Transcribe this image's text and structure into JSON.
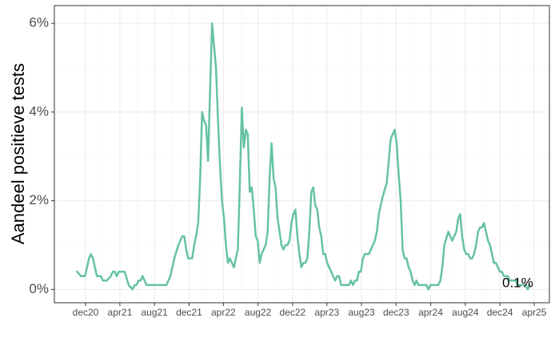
{
  "chart_data": {
    "type": "line",
    "title": "",
    "xlabel": "",
    "ylabel": "Aandeel positieve tests",
    "x_ticks": [
      "dec20",
      "apr21",
      "aug21",
      "dec21",
      "apr22",
      "aug22",
      "dec22",
      "apr23",
      "aug23",
      "dec23",
      "apr24",
      "aug24",
      "dec24",
      "apr25"
    ],
    "y_ticks": [
      "0%",
      "2%",
      "4%",
      "6%"
    ],
    "ylim": [
      0,
      6.4
    ],
    "grid": true,
    "line_color": "#66c2a5",
    "series": [
      {
        "x": [
          "2020-11-01",
          "2020-11-15",
          "2020-11-29",
          "2020-12-13",
          "2020-12-20",
          "2020-12-27",
          "2021-01-03",
          "2021-01-10",
          "2021-01-17",
          "2021-01-24",
          "2021-01-31",
          "2021-02-14",
          "2021-02-28",
          "2021-03-07",
          "2021-03-14",
          "2021-03-21",
          "2021-03-28",
          "2021-04-04",
          "2021-04-11",
          "2021-04-18",
          "2021-05-02",
          "2021-05-16",
          "2021-05-23",
          "2021-05-30",
          "2021-06-06",
          "2021-06-13",
          "2021-06-20",
          "2021-06-27",
          "2021-07-04",
          "2021-07-11",
          "2021-07-18",
          "2021-07-25",
          "2021-08-01",
          "2021-08-08",
          "2021-08-15",
          "2021-08-29",
          "2021-09-12",
          "2021-09-26",
          "2021-10-10",
          "2021-10-24",
          "2021-11-07",
          "2021-11-14",
          "2021-11-21",
          "2021-11-28",
          "2021-12-05",
          "2021-12-12",
          "2021-12-19",
          "2021-12-26",
          "2022-01-02",
          "2022-01-09",
          "2022-01-16",
          "2022-01-23",
          "2022-01-30",
          "2022-02-06",
          "2022-02-13",
          "2022-02-20",
          "2022-02-27",
          "2022-03-06",
          "2022-03-13",
          "2022-03-20",
          "2022-03-27",
          "2022-04-03",
          "2022-04-10",
          "2022-04-17",
          "2022-04-24",
          "2022-05-01",
          "2022-05-08",
          "2022-05-15",
          "2022-05-22",
          "2022-05-29",
          "2022-06-05",
          "2022-06-12",
          "2022-06-19",
          "2022-06-26",
          "2022-07-03",
          "2022-07-10",
          "2022-07-17",
          "2022-07-24",
          "2022-07-31",
          "2022-08-07",
          "2022-08-14",
          "2022-08-21",
          "2022-08-28",
          "2022-09-04",
          "2022-09-11",
          "2022-09-18",
          "2022-09-25",
          "2022-10-02",
          "2022-10-09",
          "2022-10-16",
          "2022-10-23",
          "2022-10-30",
          "2022-11-06",
          "2022-11-13",
          "2022-11-20",
          "2022-11-27",
          "2022-12-04",
          "2022-12-11",
          "2022-12-18",
          "2022-12-25",
          "2023-01-01",
          "2023-01-08",
          "2023-01-15",
          "2023-01-22",
          "2023-01-29",
          "2023-02-05",
          "2023-02-12",
          "2023-02-19",
          "2023-02-26",
          "2023-03-05",
          "2023-03-12",
          "2023-03-19",
          "2023-03-26",
          "2023-04-02",
          "2023-04-09",
          "2023-04-16",
          "2023-04-23",
          "2023-04-30",
          "2023-05-07",
          "2023-05-14",
          "2023-05-21",
          "2023-05-28",
          "2023-06-04",
          "2023-06-11",
          "2023-06-18",
          "2023-06-25",
          "2023-07-02",
          "2023-07-09",
          "2023-07-16",
          "2023-07-23",
          "2023-07-30",
          "2023-08-06",
          "2023-08-13",
          "2023-08-20",
          "2023-08-27",
          "2023-09-03",
          "2023-09-10",
          "2023-09-17",
          "2023-09-24",
          "2023-10-01",
          "2023-10-15",
          "2023-10-29",
          "2023-11-12",
          "2023-11-26",
          "2023-12-03",
          "2023-12-10",
          "2023-12-17",
          "2023-12-24",
          "2023-12-31",
          "2024-01-07",
          "2024-01-14",
          "2024-01-21",
          "2024-01-28",
          "2024-02-04",
          "2024-02-11",
          "2024-02-18",
          "2024-02-25",
          "2024-03-03",
          "2024-03-10",
          "2024-03-17",
          "2024-03-24",
          "2024-03-31",
          "2024-04-14",
          "2024-04-28",
          "2024-05-05",
          "2024-05-12",
          "2024-05-19",
          "2024-06-02",
          "2024-06-16",
          "2024-06-30",
          "2024-07-07",
          "2024-07-14",
          "2024-07-21",
          "2024-07-28",
          "2024-08-04",
          "2024-08-11",
          "2024-08-18",
          "2024-08-25",
          "2024-09-01",
          "2024-09-08",
          "2024-09-15",
          "2024-09-22",
          "2024-09-29",
          "2024-10-06",
          "2024-10-13",
          "2024-10-20",
          "2024-10-27",
          "2024-11-03",
          "2024-11-10",
          "2024-11-17",
          "2024-11-24",
          "2024-12-01",
          "2024-12-08",
          "2024-12-15",
          "2024-12-22",
          "2024-12-29",
          "2025-01-05",
          "2025-01-12",
          "2025-01-19",
          "2025-01-26",
          "2025-02-02",
          "2025-02-09",
          "2025-02-16",
          "2025-02-23",
          "2025-03-02",
          "2025-03-09",
          "2025-03-16"
        ],
        "y": [
          0.4,
          0.3,
          0.3,
          0.7,
          0.8,
          0.7,
          0.5,
          0.3,
          0.3,
          0.3,
          0.2,
          0.2,
          0.3,
          0.4,
          0.4,
          0.3,
          0.4,
          0.4,
          0.4,
          0.4,
          0.1,
          0.0,
          0.1,
          0.1,
          0.2,
          0.2,
          0.3,
          0.2,
          0.1,
          0.1,
          0.1,
          0.1,
          0.1,
          0.1,
          0.1,
          0.1,
          0.1,
          0.3,
          0.7,
          1.0,
          1.2,
          1.2,
          0.9,
          0.7,
          0.7,
          0.7,
          1.0,
          1.2,
          1.5,
          2.5,
          4.0,
          3.8,
          3.7,
          2.9,
          4.5,
          6.0,
          5.5,
          5.0,
          3.8,
          2.8,
          2.0,
          1.6,
          1.0,
          0.6,
          0.7,
          0.6,
          0.5,
          0.7,
          0.9,
          2.4,
          4.1,
          3.2,
          3.6,
          3.5,
          2.2,
          2.3,
          1.8,
          1.2,
          1.1,
          0.6,
          0.8,
          0.9,
          1.0,
          1.3,
          2.5,
          3.3,
          2.5,
          2.3,
          1.6,
          1.3,
          1.0,
          0.9,
          1.0,
          1.0,
          1.1,
          1.5,
          1.7,
          1.8,
          1.2,
          0.8,
          0.5,
          0.6,
          0.6,
          0.7,
          1.3,
          2.2,
          2.3,
          1.9,
          1.8,
          1.4,
          1.2,
          0.8,
          0.8,
          0.6,
          0.5,
          0.4,
          0.3,
          0.2,
          0.3,
          0.3,
          0.1,
          0.1,
          0.1,
          0.1,
          0.1,
          0.2,
          0.1,
          0.2,
          0.2,
          0.4,
          0.4,
          0.7,
          0.8,
          0.8,
          0.8,
          0.9,
          1.0,
          1.1,
          1.3,
          1.7,
          2.1,
          2.4,
          3.4,
          3.6,
          3.3,
          2.6,
          2.0,
          0.9,
          0.7,
          0.7,
          0.5,
          0.4,
          0.2,
          0.1,
          0.2,
          0.1,
          0.1,
          0.1,
          0.1,
          0.1,
          0.0,
          0.1,
          0.1,
          0.1,
          0.2,
          0.5,
          1.0,
          1.3,
          1.1,
          1.3,
          1.6,
          1.7,
          1.2,
          0.9,
          0.8,
          0.8,
          0.7,
          0.7,
          0.8,
          1.0,
          1.3,
          1.4,
          1.4,
          1.5,
          1.3,
          1.1,
          1.0,
          0.8,
          0.6,
          0.6,
          0.5,
          0.4,
          0.4,
          0.3,
          0.3,
          0.3,
          0.2,
          0.2,
          0.2,
          0.2,
          0.1,
          0.1,
          0.1,
          0.1,
          0.1,
          0.0,
          0.1
        ]
      }
    ],
    "annotations": [
      {
        "text": "0.1%",
        "x": "2025-02-02",
        "y": 0.1
      }
    ]
  }
}
